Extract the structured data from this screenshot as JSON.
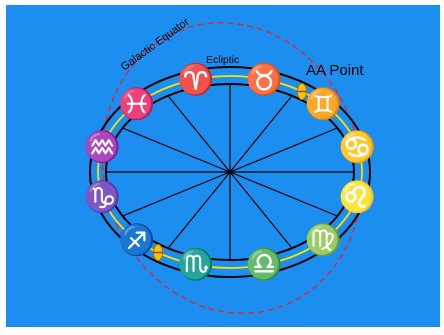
{
  "labels": {
    "galactic_equator": "Galactic Equator",
    "ecliptic": "Ecliptic",
    "aa_point": "AA Point"
  },
  "zodiac": [
    {
      "name": "aries",
      "glyph": "♈"
    },
    {
      "name": "taurus",
      "glyph": "♉"
    },
    {
      "name": "gemini",
      "glyph": "♊"
    },
    {
      "name": "cancer",
      "glyph": "♋"
    },
    {
      "name": "leo",
      "glyph": "♌"
    },
    {
      "name": "virgo",
      "glyph": "♍"
    },
    {
      "name": "libra",
      "glyph": "♎"
    },
    {
      "name": "scorpio",
      "glyph": "♏"
    },
    {
      "name": "sagittarius",
      "glyph": "♐"
    },
    {
      "name": "capricorn",
      "glyph": "♑"
    },
    {
      "name": "aquarius",
      "glyph": "♒"
    },
    {
      "name": "pisces",
      "glyph": "♓"
    }
  ],
  "colors": {
    "background": "#1b8ef0",
    "ring": "#000000",
    "ecliptic_line": "#f5e400",
    "galactic_line": "#c8334a",
    "marker": "#f5c800",
    "text": "#000000"
  }
}
